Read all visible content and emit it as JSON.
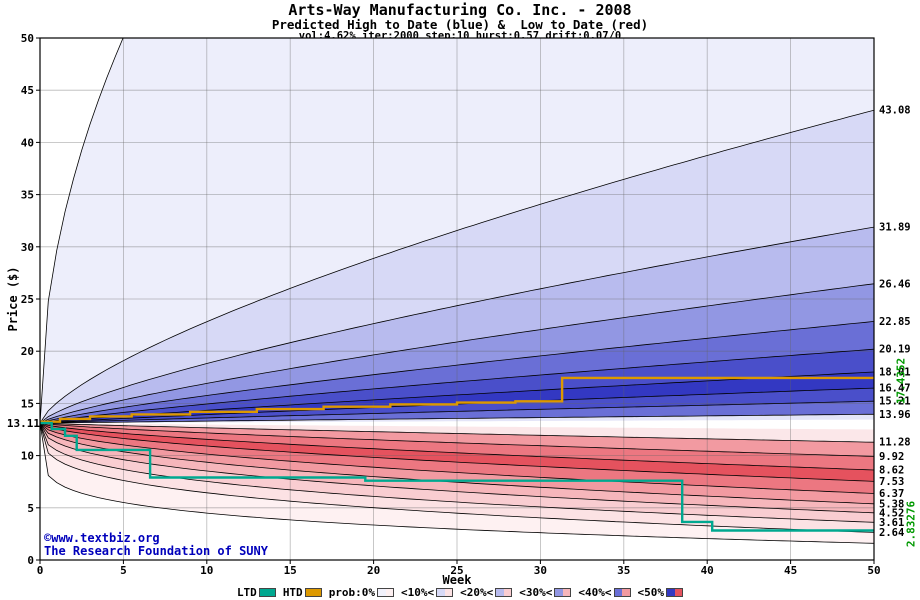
{
  "annotations": {
    "start_price_label": "13.11",
    "htd_final_label": "17.4352",
    "ltd_final_label": "2.83276",
    "copyright_url": "©www.textbiz.org",
    "copyright_org": "The Research Foundation of SUNY"
  },
  "legend": {
    "items": [
      {
        "label": "LTD",
        "colors": [
          "#00a890"
        ]
      },
      {
        "label": "HTD",
        "colors": [
          "#dd9900"
        ]
      },
      {
        "label": "prob:0%",
        "colors": [
          "#f1f1fb",
          "#fdf0f1"
        ]
      },
      {
        "label": "<10%<",
        "colors": [
          "#d7d9f6",
          "#fce2e4"
        ]
      },
      {
        "label": "<20%<",
        "colors": [
          "#b8bbee",
          "#f9cdd1"
        ]
      },
      {
        "label": "<30%<",
        "colors": [
          "#9297e3",
          "#f6b6bb"
        ]
      },
      {
        "label": "<40%<",
        "colors": [
          "#6a6fd6",
          "#f29aa1"
        ]
      },
      {
        "label": "<50%",
        "colors": [
          "#3338c2",
          "#e5525e"
        ]
      }
    ]
  },
  "chart_data": {
    "type": "area",
    "title": "Arts-Way Manufacturing Co. Inc. - 2008",
    "subtitle": "Predicted High to Date (blue) &  Low to Date (red)",
    "params": "vol:4.62% iter:2000 step:10 hurst:0.57 drift:0.07/0",
    "xlabel": "Week",
    "ylabel": "Price ($)",
    "xlim": [
      0,
      50
    ],
    "ylim": [
      0,
      50
    ],
    "x_ticks": [
      0,
      5,
      10,
      15,
      20,
      25,
      30,
      35,
      40,
      45,
      50
    ],
    "y_ticks": [
      0,
      5,
      10,
      15,
      20,
      25,
      30,
      35,
      40,
      45,
      50
    ],
    "grid": true,
    "start_price": 13.11,
    "high_to_date": {
      "band_end_values": [
        13.96,
        15.21,
        16.47,
        18.01,
        20.19,
        22.85,
        26.46,
        31.89,
        43.08
      ],
      "band_exponents": [
        0.92,
        0.9,
        0.88,
        0.86,
        0.84,
        0.81,
        0.78,
        0.74,
        0.7
      ],
      "envelope_end": 130,
      "envelope_exponent": 0.5,
      "fade_end": 13.45,
      "fade_exponent": 0.95,
      "fade_color": "#e4e5f8",
      "band_colors": [
        "#6a6fd6",
        "#4a4fca",
        "#3338c2",
        "#4a4fca",
        "#6a6fd6",
        "#9297e3",
        "#b8bbee",
        "#d7d9f6",
        "#edeefb"
      ],
      "final_value": 17.4352
    },
    "low_to_date": {
      "band_end_values": [
        11.28,
        9.92,
        8.62,
        7.53,
        6.37,
        5.38,
        4.52,
        3.61,
        2.64
      ],
      "band_exponents": [
        0.88,
        0.76,
        0.66,
        0.58,
        0.51,
        0.45,
        0.39,
        0.33,
        0.28
      ],
      "envelope_end": 1.6,
      "envelope_exponent": 0.18,
      "fade_end": 12.5,
      "fade_exponent": 0.92,
      "fade_color": "#fbe7e9",
      "band_colors": [
        "#f29aa1",
        "#ec7781",
        "#e5525e",
        "#ec7781",
        "#f29aa1",
        "#f6b6bb",
        "#f9cdd1",
        "#fce2e4",
        "#fef1f2"
      ],
      "final_value": 2.83276
    },
    "htd_line": {
      "color": "#dd9900",
      "steps": [
        [
          0,
          13.25
        ],
        [
          1.2,
          13.52
        ],
        [
          3,
          13.75
        ],
        [
          5.5,
          13.95
        ],
        [
          9,
          14.2
        ],
        [
          13,
          14.45
        ],
        [
          17,
          14.68
        ],
        [
          21,
          14.9
        ],
        [
          25,
          15.08
        ],
        [
          28.5,
          15.2
        ],
        [
          31.3,
          17.44
        ],
        [
          50,
          17.44
        ]
      ]
    },
    "ltd_line": {
      "color": "#00a890",
      "steps": [
        [
          0,
          13.11
        ],
        [
          0.7,
          12.55
        ],
        [
          1.5,
          11.9
        ],
        [
          2.2,
          10.55
        ],
        [
          6.6,
          7.9
        ],
        [
          19.5,
          7.6
        ],
        [
          38.5,
          3.65
        ],
        [
          40.3,
          2.83
        ],
        [
          50,
          2.83
        ]
      ]
    }
  }
}
